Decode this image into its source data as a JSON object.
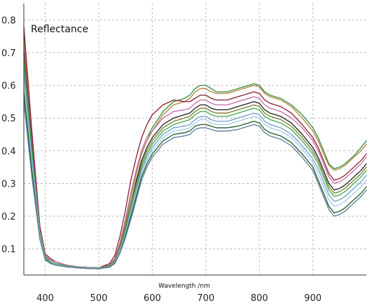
{
  "chart_data": {
    "type": "line",
    "title": "",
    "xlabel": "Wavelength /nm",
    "ylabel": "Reflectance",
    "xlim": [
      360,
      1000
    ],
    "ylim": [
      0.02,
      0.85
    ],
    "x_ticks": [
      400,
      500,
      600,
      700,
      800,
      900
    ],
    "y_ticks": [
      0.1,
      0.2,
      0.3,
      0.4,
      0.5,
      0.6,
      0.7,
      0.8
    ],
    "grid": true,
    "legend": "none",
    "x": [
      360,
      375,
      390,
      400,
      410,
      420,
      440,
      460,
      480,
      500,
      520,
      530,
      540,
      550,
      560,
      570,
      580,
      590,
      600,
      620,
      640,
      660,
      670,
      680,
      690,
      700,
      710,
      720,
      740,
      760,
      780,
      790,
      800,
      810,
      820,
      840,
      860,
      880,
      900,
      910,
      920,
      930,
      940,
      950,
      960,
      970,
      980,
      990,
      1000
    ],
    "series": [
      {
        "color": "#2f8f3a",
        "values": [
          0.76,
          0.45,
          0.16,
          0.08,
          0.065,
          0.06,
          0.05,
          0.045,
          0.043,
          0.042,
          0.05,
          0.07,
          0.12,
          0.19,
          0.27,
          0.34,
          0.4,
          0.44,
          0.47,
          0.52,
          0.55,
          0.56,
          0.57,
          0.59,
          0.6,
          0.6,
          0.59,
          0.58,
          0.58,
          0.59,
          0.6,
          0.605,
          0.6,
          0.58,
          0.57,
          0.56,
          0.54,
          0.51,
          0.47,
          0.44,
          0.4,
          0.36,
          0.345,
          0.35,
          0.36,
          0.375,
          0.39,
          0.41,
          0.43
        ]
      },
      {
        "color": "#b5803a",
        "values": [
          0.74,
          0.44,
          0.16,
          0.08,
          0.065,
          0.06,
          0.05,
          0.045,
          0.043,
          0.042,
          0.05,
          0.07,
          0.12,
          0.18,
          0.26,
          0.33,
          0.39,
          0.43,
          0.46,
          0.51,
          0.54,
          0.55,
          0.56,
          0.58,
          0.59,
          0.59,
          0.58,
          0.575,
          0.575,
          0.585,
          0.595,
          0.6,
          0.595,
          0.575,
          0.565,
          0.555,
          0.535,
          0.5,
          0.46,
          0.43,
          0.39,
          0.355,
          0.34,
          0.345,
          0.355,
          0.37,
          0.385,
          0.4,
          0.42
        ]
      },
      {
        "color": "#8b1c2c",
        "values": [
          0.78,
          0.46,
          0.17,
          0.085,
          0.07,
          0.06,
          0.05,
          0.045,
          0.043,
          0.042,
          0.055,
          0.08,
          0.14,
          0.22,
          0.31,
          0.38,
          0.44,
          0.48,
          0.51,
          0.54,
          0.555,
          0.55,
          0.55,
          0.56,
          0.57,
          0.57,
          0.56,
          0.555,
          0.555,
          0.565,
          0.575,
          0.58,
          0.575,
          0.555,
          0.545,
          0.535,
          0.515,
          0.48,
          0.44,
          0.41,
          0.37,
          0.33,
          0.31,
          0.315,
          0.325,
          0.34,
          0.355,
          0.37,
          0.39
        ]
      },
      {
        "color": "#c46aa8",
        "values": [
          0.72,
          0.43,
          0.16,
          0.08,
          0.065,
          0.06,
          0.05,
          0.045,
          0.043,
          0.042,
          0.05,
          0.07,
          0.12,
          0.19,
          0.27,
          0.34,
          0.4,
          0.44,
          0.46,
          0.5,
          0.52,
          0.525,
          0.53,
          0.545,
          0.555,
          0.555,
          0.545,
          0.54,
          0.54,
          0.55,
          0.56,
          0.565,
          0.56,
          0.54,
          0.53,
          0.52,
          0.5,
          0.47,
          0.43,
          0.4,
          0.36,
          0.32,
          0.3,
          0.305,
          0.315,
          0.33,
          0.345,
          0.36,
          0.38
        ]
      },
      {
        "color": "#1e1e1e",
        "values": [
          0.7,
          0.42,
          0.15,
          0.075,
          0.06,
          0.055,
          0.048,
          0.044,
          0.042,
          0.041,
          0.05,
          0.065,
          0.11,
          0.17,
          0.24,
          0.31,
          0.37,
          0.41,
          0.44,
          0.48,
          0.5,
          0.51,
          0.515,
          0.53,
          0.54,
          0.54,
          0.53,
          0.525,
          0.525,
          0.535,
          0.545,
          0.55,
          0.545,
          0.525,
          0.515,
          0.505,
          0.485,
          0.45,
          0.41,
          0.38,
          0.34,
          0.3,
          0.28,
          0.285,
          0.295,
          0.31,
          0.325,
          0.34,
          0.36
        ]
      },
      {
        "color": "#7a7a2a",
        "values": [
          0.69,
          0.41,
          0.15,
          0.075,
          0.06,
          0.055,
          0.048,
          0.044,
          0.042,
          0.041,
          0.05,
          0.065,
          0.11,
          0.17,
          0.24,
          0.3,
          0.36,
          0.4,
          0.43,
          0.47,
          0.49,
          0.5,
          0.505,
          0.52,
          0.53,
          0.53,
          0.52,
          0.515,
          0.515,
          0.525,
          0.535,
          0.54,
          0.535,
          0.515,
          0.505,
          0.495,
          0.475,
          0.44,
          0.4,
          0.37,
          0.33,
          0.29,
          0.27,
          0.275,
          0.285,
          0.3,
          0.315,
          0.33,
          0.35
        ]
      },
      {
        "color": "#3aa84a",
        "values": [
          0.67,
          0.4,
          0.15,
          0.075,
          0.06,
          0.055,
          0.048,
          0.044,
          0.042,
          0.041,
          0.048,
          0.06,
          0.1,
          0.16,
          0.23,
          0.29,
          0.35,
          0.39,
          0.42,
          0.46,
          0.48,
          0.49,
          0.495,
          0.51,
          0.52,
          0.52,
          0.51,
          0.505,
          0.505,
          0.515,
          0.525,
          0.53,
          0.525,
          0.505,
          0.495,
          0.485,
          0.465,
          0.43,
          0.39,
          0.36,
          0.32,
          0.28,
          0.26,
          0.265,
          0.275,
          0.29,
          0.305,
          0.32,
          0.34
        ]
      },
      {
        "color": "#6f9ec9",
        "values": [
          0.64,
          0.38,
          0.14,
          0.07,
          0.058,
          0.052,
          0.046,
          0.043,
          0.041,
          0.04,
          0.047,
          0.06,
          0.1,
          0.15,
          0.22,
          0.28,
          0.34,
          0.38,
          0.41,
          0.45,
          0.47,
          0.475,
          0.48,
          0.495,
          0.505,
          0.505,
          0.495,
          0.49,
          0.49,
          0.5,
          0.51,
          0.515,
          0.51,
          0.49,
          0.48,
          0.47,
          0.45,
          0.415,
          0.375,
          0.345,
          0.305,
          0.265,
          0.245,
          0.25,
          0.26,
          0.275,
          0.29,
          0.305,
          0.325
        ]
      },
      {
        "color": "#a8c8e6",
        "values": [
          0.61,
          0.36,
          0.14,
          0.07,
          0.058,
          0.052,
          0.046,
          0.043,
          0.041,
          0.04,
          0.046,
          0.058,
          0.095,
          0.145,
          0.21,
          0.27,
          0.33,
          0.37,
          0.4,
          0.44,
          0.46,
          0.465,
          0.47,
          0.485,
          0.495,
          0.495,
          0.485,
          0.48,
          0.48,
          0.49,
          0.5,
          0.505,
          0.5,
          0.48,
          0.47,
          0.46,
          0.44,
          0.405,
          0.365,
          0.33,
          0.29,
          0.25,
          0.23,
          0.235,
          0.245,
          0.26,
          0.275,
          0.29,
          0.31
        ]
      },
      {
        "color": "#1f5a2a",
        "values": [
          0.58,
          0.34,
          0.13,
          0.068,
          0.056,
          0.05,
          0.045,
          0.042,
          0.04,
          0.039,
          0.045,
          0.056,
          0.09,
          0.14,
          0.2,
          0.26,
          0.32,
          0.36,
          0.39,
          0.43,
          0.45,
          0.455,
          0.46,
          0.475,
          0.48,
          0.48,
          0.475,
          0.47,
          0.47,
          0.475,
          0.485,
          0.49,
          0.485,
          0.465,
          0.455,
          0.445,
          0.425,
          0.39,
          0.35,
          0.31,
          0.27,
          0.23,
          0.21,
          0.215,
          0.225,
          0.24,
          0.255,
          0.27,
          0.29
        ]
      },
      {
        "color": "#5a7a9a",
        "values": [
          0.55,
          0.32,
          0.13,
          0.066,
          0.055,
          0.05,
          0.045,
          0.042,
          0.04,
          0.039,
          0.044,
          0.055,
          0.088,
          0.135,
          0.19,
          0.25,
          0.31,
          0.35,
          0.38,
          0.42,
          0.44,
          0.445,
          0.45,
          0.465,
          0.47,
          0.47,
          0.465,
          0.46,
          0.46,
          0.465,
          0.475,
          0.48,
          0.475,
          0.455,
          0.445,
          0.435,
          0.415,
          0.38,
          0.34,
          0.3,
          0.26,
          0.22,
          0.2,
          0.205,
          0.215,
          0.23,
          0.245,
          0.26,
          0.28
        ]
      }
    ],
    "colors": {
      "grid": "#bdbdbd",
      "axis": "#333333",
      "background": "#ffffff"
    }
  }
}
